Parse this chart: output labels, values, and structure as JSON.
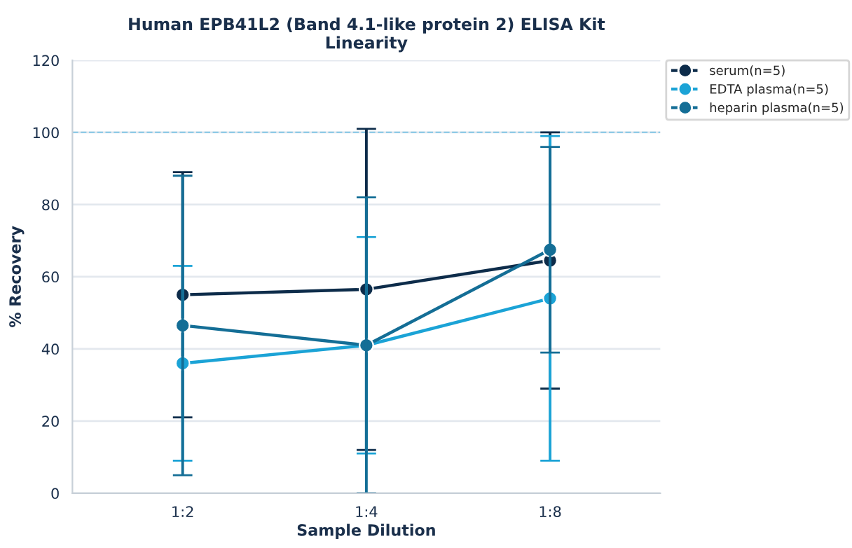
{
  "chart_data": {
    "type": "line",
    "title": "Human EPB41L2 (Band 4.1-like protein 2) ELISA Kit\nLinearity",
    "xlabel": "Sample Dilution",
    "ylabel": "% Recovery",
    "categories": [
      "1:2",
      "1:4",
      "1:8"
    ],
    "series": [
      {
        "name": "serum(n=5)",
        "color": "#0d2c4a",
        "values": [
          55,
          56.5,
          64.5
        ],
        "errors": [
          [
            21,
            89
          ],
          [
            12,
            101
          ],
          [
            29,
            100
          ]
        ]
      },
      {
        "name": "EDTA plasma(n=5)",
        "color": "#1ba3d6",
        "values": [
          36,
          41,
          54
        ],
        "errors": [
          [
            9,
            63
          ],
          [
            11,
            71
          ],
          [
            9,
            99
          ]
        ]
      },
      {
        "name": "heparin plasma(n=5)",
        "color": "#146e96",
        "values": [
          46.5,
          41,
          67.5
        ],
        "errors": [
          [
            5,
            88
          ],
          [
            0,
            82
          ],
          [
            39,
            96
          ]
        ]
      }
    ],
    "ylim": [
      0,
      120
    ],
    "yticks": [
      0,
      20,
      40,
      60,
      80,
      100,
      120
    ],
    "grid": "y",
    "legend": "top right",
    "marker": "circle",
    "line_style": "solid",
    "ref_lines": [
      {
        "axis": "y",
        "value": 100,
        "label": null,
        "color": "#8ecae6",
        "line_style": "dashed"
      }
    ]
  }
}
